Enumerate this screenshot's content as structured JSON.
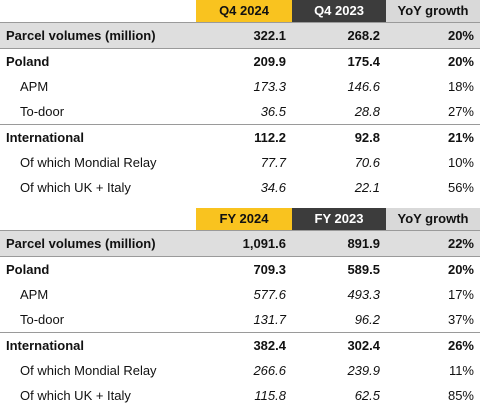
{
  "q4": {
    "headers": [
      "Q4 2024",
      "Q4 2023",
      "YoY growth"
    ],
    "rows": [
      {
        "type": "total",
        "label": "Parcel volumes (million)",
        "v1": "322.1",
        "v2": "268.2",
        "v3": "20%"
      },
      {
        "type": "main",
        "label": "Poland",
        "v1": "209.9",
        "v2": "175.4",
        "v3": "20%"
      },
      {
        "type": "sub",
        "label": "APM",
        "v1": "173.3",
        "v2": "146.6",
        "v3": "18%"
      },
      {
        "type": "sub",
        "label": "To-door",
        "v1": "36.5",
        "v2": "28.8",
        "v3": "27%"
      },
      {
        "type": "main",
        "label": "International",
        "v1": "112.2",
        "v2": "92.8",
        "v3": "21%"
      },
      {
        "type": "sub",
        "label": "Of which Mondial Relay",
        "v1": "77.7",
        "v2": "70.6",
        "v3": "10%"
      },
      {
        "type": "sub",
        "label": "Of which UK + Italy",
        "v1": "34.6",
        "v2": "22.1",
        "v3": "56%"
      }
    ]
  },
  "fy": {
    "headers": [
      "FY 2024",
      "FY 2023",
      "YoY growth"
    ],
    "rows": [
      {
        "type": "total",
        "label": "Parcel volumes (million)",
        "v1": "1,091.6",
        "v2": "891.9",
        "v3": "22%"
      },
      {
        "type": "main",
        "label": "Poland",
        "v1": "709.3",
        "v2": "589.5",
        "v3": "20%"
      },
      {
        "type": "sub",
        "label": "APM",
        "v1": "577.6",
        "v2": "493.3",
        "v3": "17%"
      },
      {
        "type": "sub",
        "label": "To-door",
        "v1": "131.7",
        "v2": "96.2",
        "v3": "37%"
      },
      {
        "type": "main",
        "label": "International",
        "v1": "382.4",
        "v2": "302.4",
        "v3": "26%"
      },
      {
        "type": "sub",
        "label": "Of which Mondial Relay",
        "v1": "266.6",
        "v2": "239.9",
        "v3": "11%"
      },
      {
        "type": "sub",
        "label": "Of which UK + Italy",
        "v1": "115.8",
        "v2": "62.5",
        "v3": "85%"
      }
    ]
  },
  "colors": {
    "current_period": "#f9c31f",
    "prior_period": "#3c3c3c",
    "growth": "#d9d9d9",
    "total_row": "#dedede"
  }
}
